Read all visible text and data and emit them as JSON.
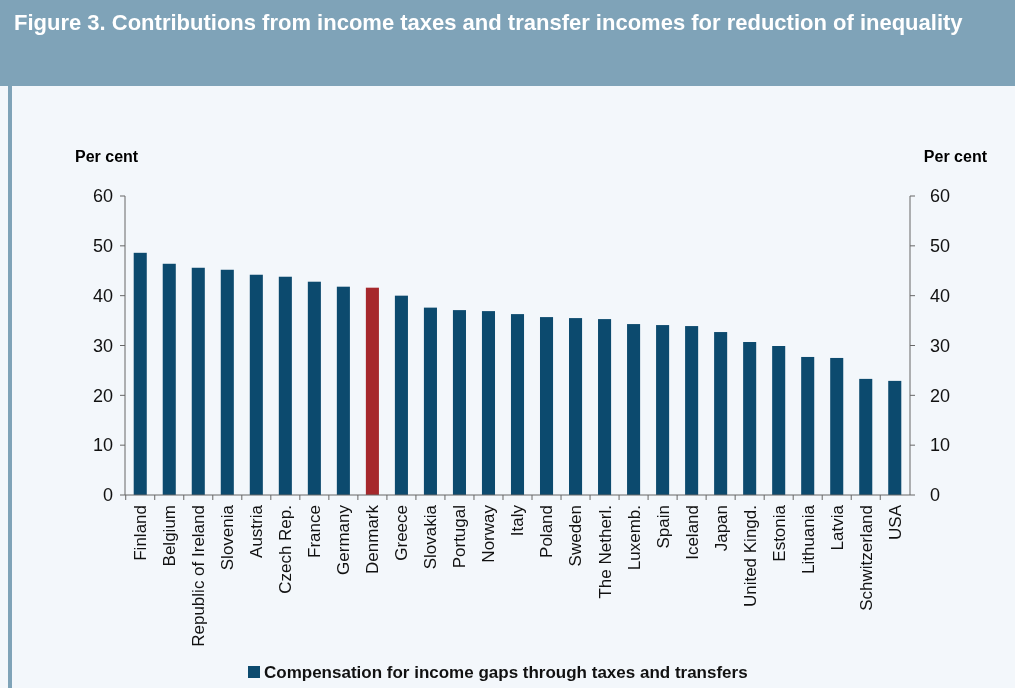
{
  "chart_data": {
    "type": "bar",
    "title": "Figure 3. Contributions from income taxes and transfer incomes for reduction of inequality",
    "ylabel": "Per cent",
    "y2label": "Per cent",
    "categories": [
      "Finland",
      "Belgium",
      "Republic of Ireland",
      "Slovenia",
      "Austria",
      "Czech Rep.",
      "France",
      "Germany",
      "Denmark",
      "Greece",
      "Slovakia",
      "Portugal",
      "Norway",
      "Italy",
      "Poland",
      "Sweden",
      "The Netherl.",
      "Luxemb.",
      "Spain",
      "Iceland",
      "Japan",
      "United Kingd.",
      "Estonia",
      "Lithuania",
      "Latvia",
      "Schwitzerland",
      "USA"
    ],
    "series": [
      {
        "name": "Compensation for income gaps through taxes and transfers",
        "color": "#0c4a6e",
        "colors": [
          "#0c4a6e",
          "#0c4a6e",
          "#0c4a6e",
          "#0c4a6e",
          "#0c4a6e",
          "#0c4a6e",
          "#0c4a6e",
          "#0c4a6e",
          "#a6282c",
          "#0c4a6e",
          "#0c4a6e",
          "#0c4a6e",
          "#0c4a6e",
          "#0c4a6e",
          "#0c4a6e",
          "#0c4a6e",
          "#0c4a6e",
          "#0c4a6e",
          "#0c4a6e",
          "#0c4a6e",
          "#0c4a6e",
          "#0c4a6e",
          "#0c4a6e",
          "#0c4a6e",
          "#0c4a6e",
          "#0c4a6e",
          "#0c4a6e"
        ],
        "values": [
          48.6,
          46.4,
          45.6,
          45.2,
          44.2,
          43.8,
          42.8,
          41.8,
          41.6,
          40.0,
          37.6,
          37.1,
          36.9,
          36.3,
          35.7,
          35.5,
          35.3,
          34.3,
          34.1,
          33.9,
          32.7,
          30.7,
          29.9,
          27.7,
          27.5,
          23.3,
          22.9
        ]
      }
    ],
    "ylim": [
      0,
      60
    ],
    "yticks": [
      0,
      10,
      20,
      30,
      40,
      50,
      60
    ],
    "y2lim": [
      0,
      60
    ],
    "y2ticks": [
      0,
      10,
      20,
      30,
      40,
      50,
      60
    ],
    "grid": false,
    "legend": "bottom"
  }
}
